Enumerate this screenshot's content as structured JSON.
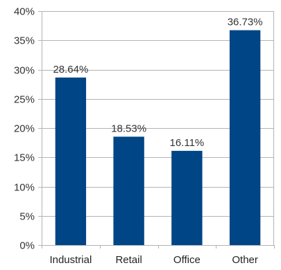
{
  "chart_data": {
    "type": "bar",
    "title": "",
    "xlabel": "",
    "ylabel": "",
    "categories": [
      "Industrial",
      "Retail",
      "Office",
      "Other"
    ],
    "series": [
      {
        "values": [
          28.64,
          18.53,
          16.11,
          36.73
        ],
        "data_labels": [
          "28.64%",
          "18.53%",
          "16.11%",
          "36.73%"
        ]
      }
    ],
    "ylim": [
      0,
      40
    ],
    "y_ticks": [
      0,
      5,
      10,
      15,
      20,
      25,
      30,
      35,
      40
    ],
    "y_tick_labels": [
      "0%",
      "5%",
      "10%",
      "15%",
      "20%",
      "25%",
      "30%",
      "35%",
      "40%"
    ],
    "grid": "horizontal",
    "legend": "none",
    "colors": {
      "bar": "#004586",
      "grid": "#b3b3b3",
      "axis": "#b3b3b3"
    }
  }
}
